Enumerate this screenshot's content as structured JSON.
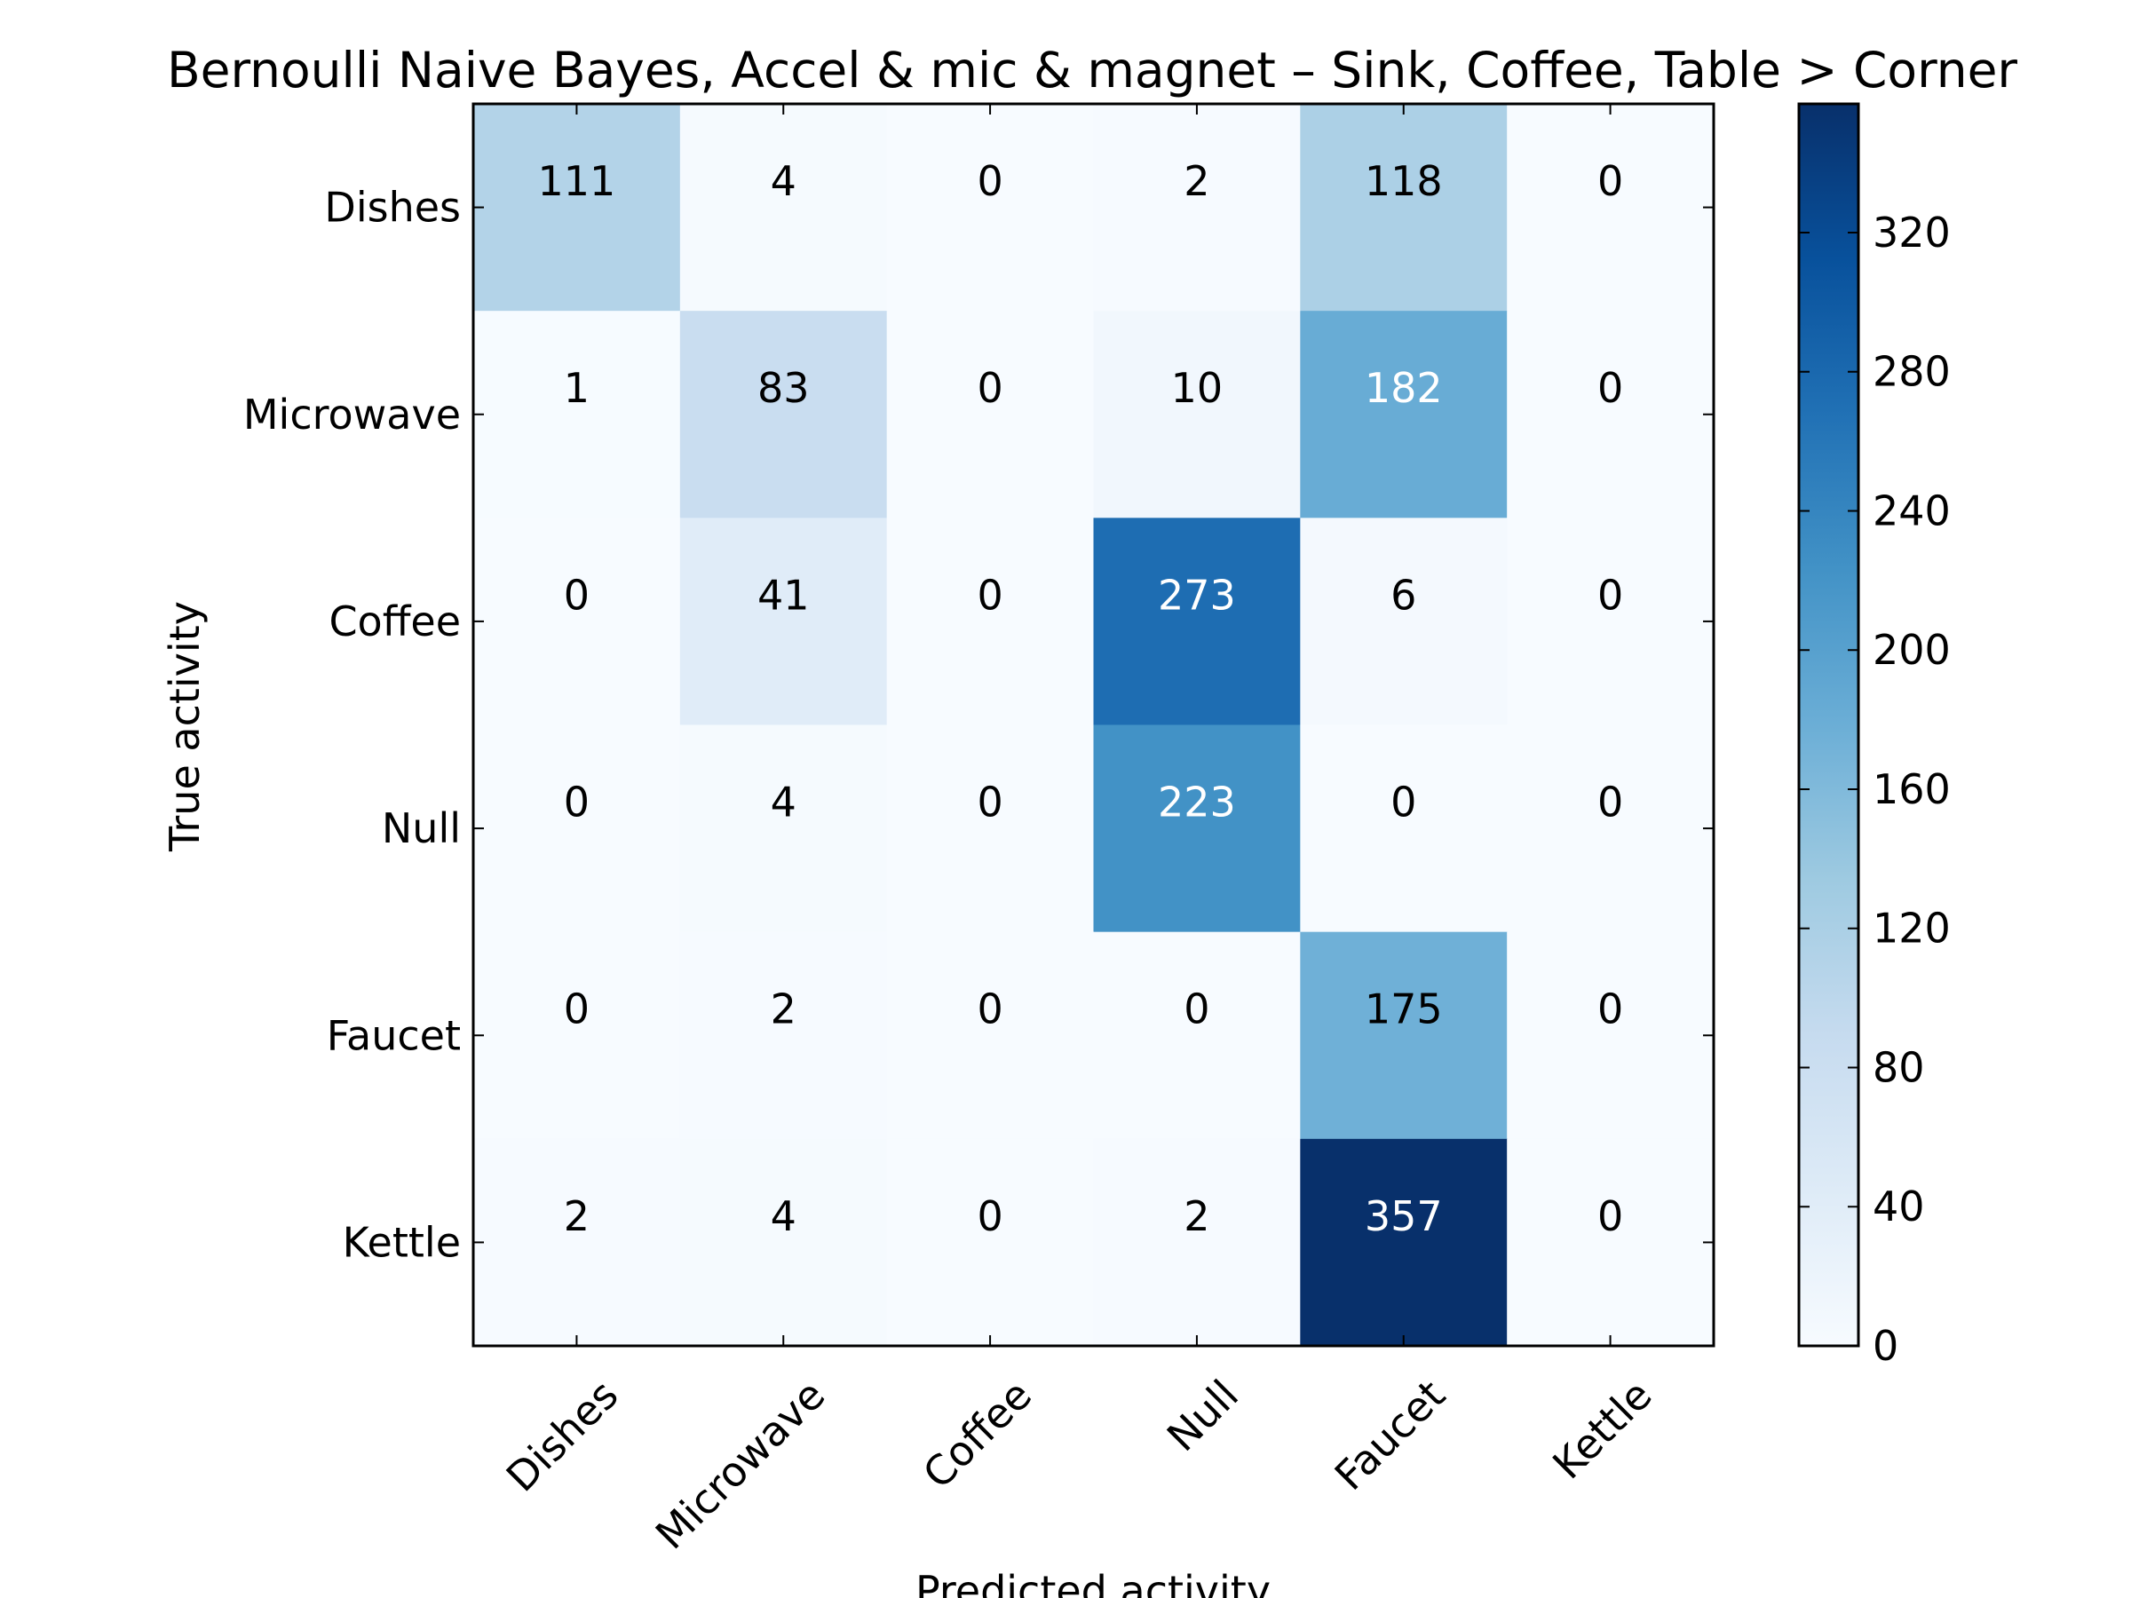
{
  "chart_data": {
    "type": "heatmap",
    "title": "Bernoulli Naive Bayes, Accel & mic & magnet – Sink, Coffee, Table > Corner",
    "xlabel": "Predicted activity",
    "ylabel": "True activity",
    "x_categories": [
      "Dishes",
      "Microwave",
      "Coffee",
      "Null",
      "Faucet",
      "Kettle"
    ],
    "y_categories": [
      "Dishes",
      "Microwave",
      "Coffee",
      "Null",
      "Faucet",
      "Kettle"
    ],
    "values": [
      [
        111,
        4,
        0,
        2,
        118,
        0
      ],
      [
        1,
        83,
        0,
        10,
        182,
        0
      ],
      [
        0,
        41,
        0,
        273,
        6,
        0
      ],
      [
        0,
        4,
        0,
        223,
        0,
        0
      ],
      [
        0,
        2,
        0,
        0,
        175,
        0
      ],
      [
        2,
        4,
        0,
        2,
        357,
        0
      ]
    ],
    "colormap": "Blues",
    "color_range": [
      0,
      357
    ],
    "colorbar_ticks": [
      0,
      40,
      80,
      120,
      160,
      200,
      240,
      280,
      320
    ],
    "grid": false
  }
}
